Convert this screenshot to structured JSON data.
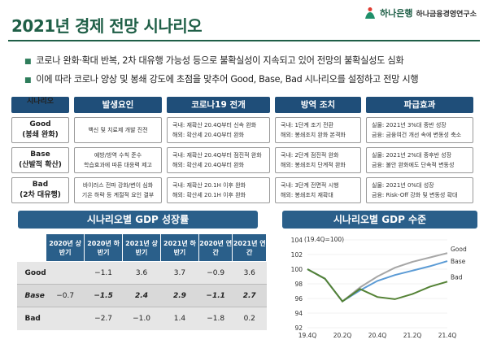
{
  "header": {
    "title": "2021년 경제 전망 시나리오",
    "logo_bank": "하나은행",
    "logo_institute": "하나금융경영연구소"
  },
  "bullets": [
    "코로나 완화·확대 반복, 2차 대유행 가능성 등으로 불확실성이 지속되고 있어 전망의 불확실성도 심화",
    "이에 따라 코로나 양상 및 봉쇄 강도에 초점을 맞추어 Good, Base, Bad 시나리오를 설정하고 전망 시행"
  ],
  "scenario_table": {
    "headers": [
      "시나리오",
      "발생요인",
      "코로나19 전개",
      "방역 조치",
      "파급효과"
    ],
    "rows": [
      {
        "name": "Good",
        "sub": "(봉쇄 완화)",
        "cause": [
          "백신 및 치료제 개발 진전"
        ],
        "covid": [
          "국내: 재확산 20.4Q부터 신속 완화",
          "해외: 확산세 20.4Q부터 완화"
        ],
        "measures": [
          "국내: 1단계 조기 전환",
          "해외: 봉쇄조치 완화 본격화"
        ],
        "effects": [
          "실물: 2021년 3%대 중반 성장",
          "금융: 금융여건 개선 속에 변동성 축소"
        ]
      },
      {
        "name": "Base",
        "sub": "(산발적 확산)",
        "cause": [
          "예방/방역 수칙 준수",
          "학습효과에 따른 대응력 제고"
        ],
        "covid": [
          "국내: 재확산 20.4Q부터 점진적 완화",
          "해외: 확산세 20.4Q부터 완화"
        ],
        "measures": [
          "국내: 2단계 점진적 완화",
          "해외: 봉쇄조치 단계적 완화"
        ],
        "effects": [
          "실물: 2021년 2%대 중후반 성장",
          "금융: 불안 완화에도 단속적 변동성"
        ]
      },
      {
        "name": "Bad",
        "sub": "(2차 대유행)",
        "cause": [
          "바이러스 전파 강화/변이 심화",
          "기온 하락 등 계절적 요인 결부"
        ],
        "covid": [
          "국내: 재확산 20.1H 이후 완화",
          "해외: 확산세 20.1H 이후 완화"
        ],
        "measures": [
          "국내: 3단계 전면적 시행",
          "해외: 봉쇄조치 재확대"
        ],
        "effects": [
          "실물: 2021년 0%대 성장",
          "금융: Risk-Off 강화 및 변동성 확대"
        ]
      }
    ]
  },
  "growth_section": {
    "title": "시나리오별 GDP 성장률",
    "columns": [
      "2020년 상반기",
      "2020년 하반기",
      "2021년 상반기",
      "2021년 하반기",
      "2020년 연간",
      "2021년 연간"
    ],
    "rows": [
      {
        "label": "Good",
        "values": [
          "",
          "−1.1",
          "3.6",
          "3.7",
          "−0.9",
          "3.6"
        ]
      },
      {
        "label": "Base",
        "values": [
          "−0.7",
          "−1.5",
          "2.4",
          "2.9",
          "−1.1",
          "2.7"
        ]
      },
      {
        "label": "Bad",
        "values": [
          "",
          "−2.7",
          "−1.0",
          "1.4",
          "−1.8",
          "0.2"
        ]
      }
    ]
  },
  "gdp_section": {
    "title": "시나리오별 GDP 수준"
  },
  "chart_data": {
    "type": "line",
    "title": "시나리오별 GDP 수준",
    "note": "(19.4Q=100)",
    "x": [
      "19.4Q",
      "20.1Q",
      "20.2Q",
      "20.3Q",
      "20.4Q",
      "21.1Q",
      "21.2Q",
      "21.3Q",
      "21.4Q"
    ],
    "x_tick_labels": [
      "19.4Q",
      "20.2Q",
      "20.4Q",
      "21.2Q",
      "21.4Q"
    ],
    "ylim": [
      92,
      104
    ],
    "yticks": [
      92,
      94,
      96,
      98,
      100,
      102,
      104
    ],
    "series": [
      {
        "name": "Good",
        "color": "#a6a6a6",
        "values": [
          100,
          98.7,
          95.6,
          97.5,
          99.0,
          100.2,
          101.0,
          101.6,
          102.2
        ]
      },
      {
        "name": "Base",
        "color": "#5b9bd5",
        "values": [
          100,
          98.7,
          95.6,
          97.1,
          98.4,
          99.2,
          99.8,
          100.4,
          101.1
        ]
      },
      {
        "name": "Bad",
        "color": "#548235",
        "values": [
          100,
          98.7,
          95.6,
          97.3,
          96.2,
          95.9,
          96.6,
          97.6,
          98.3
        ]
      }
    ]
  }
}
